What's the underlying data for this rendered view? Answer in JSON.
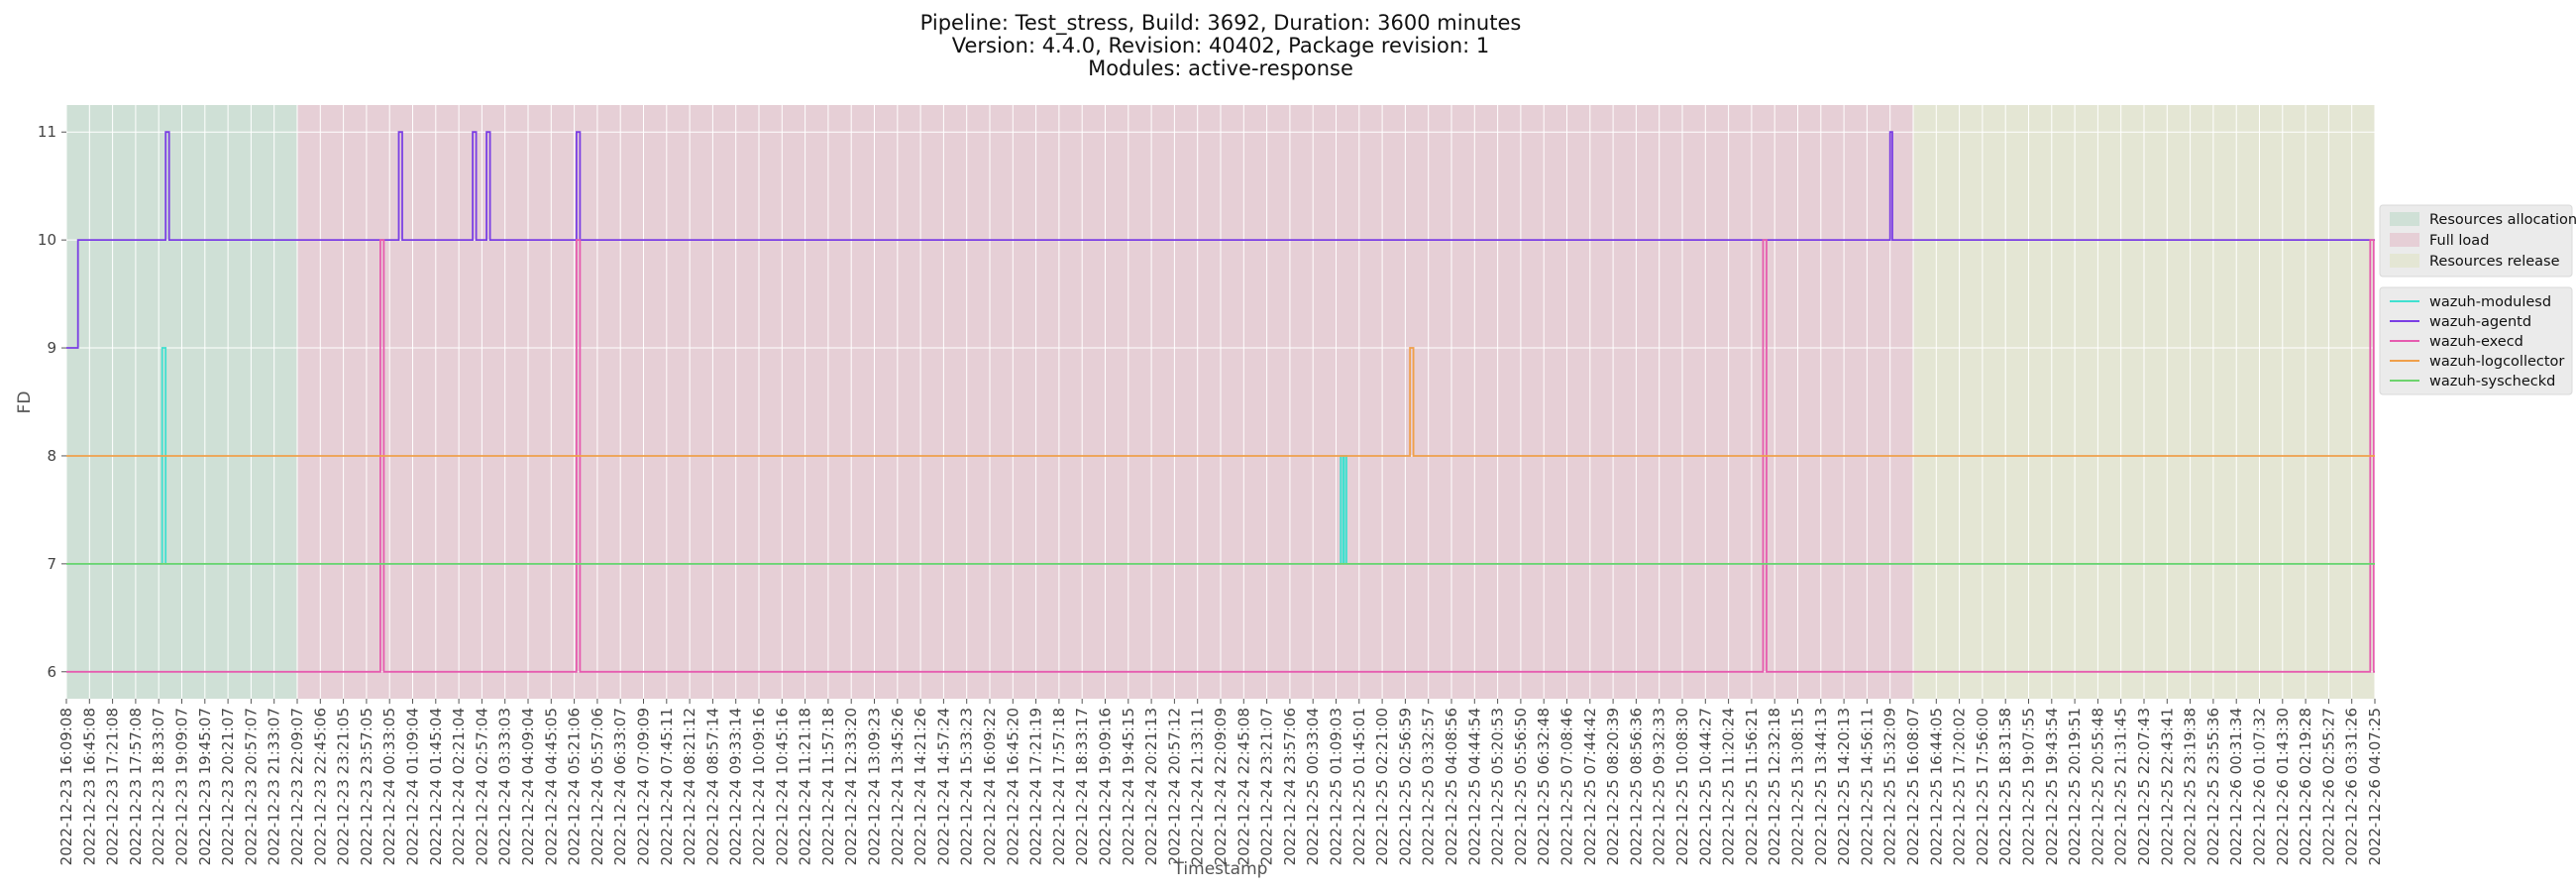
{
  "chart_data": {
    "type": "line",
    "title_lines": [
      "Pipeline: Test_stress, Build: 3692, Duration: 3600 minutes",
      "Version: 4.4.0, Revision: 40402, Package revision: 1",
      "Modules: active-response"
    ],
    "xlabel": "Timestamp",
    "ylabel": "FD",
    "ylim": [
      5.75,
      11.25
    ],
    "yticks": [
      6,
      7,
      8,
      9,
      10,
      11
    ],
    "grid": true,
    "x_tick_labels": [
      "2022-12-23 16:09:08",
      "2022-12-23 16:45:08",
      "2022-12-23 17:21:08",
      "2022-12-23 17:57:08",
      "2022-12-23 18:33:07",
      "2022-12-23 19:09:07",
      "2022-12-23 19:45:07",
      "2022-12-23 20:21:07",
      "2022-12-23 20:57:07",
      "2022-12-23 21:33:07",
      "2022-12-23 22:09:07",
      "2022-12-23 22:45:06",
      "2022-12-23 23:21:05",
      "2022-12-23 23:57:05",
      "2022-12-24 00:33:05",
      "2022-12-24 01:09:04",
      "2022-12-24 01:45:04",
      "2022-12-24 02:21:04",
      "2022-12-24 02:57:04",
      "2022-12-24 03:33:03",
      "2022-12-24 04:09:04",
      "2022-12-24 04:45:05",
      "2022-12-24 05:21:06",
      "2022-12-24 05:57:06",
      "2022-12-24 06:33:07",
      "2022-12-24 07:09:09",
      "2022-12-24 07:45:11",
      "2022-12-24 08:21:12",
      "2022-12-24 08:57:14",
      "2022-12-24 09:33:14",
      "2022-12-24 10:09:16",
      "2022-12-24 10:45:16",
      "2022-12-24 11:21:18",
      "2022-12-24 11:57:18",
      "2022-12-24 12:33:20",
      "2022-12-24 13:09:23",
      "2022-12-24 13:45:26",
      "2022-12-24 14:21:26",
      "2022-12-24 14:57:24",
      "2022-12-24 15:33:23",
      "2022-12-24 16:09:22",
      "2022-12-24 16:45:20",
      "2022-12-24 17:21:19",
      "2022-12-24 17:57:18",
      "2022-12-24 18:33:17",
      "2022-12-24 19:09:16",
      "2022-12-24 19:45:15",
      "2022-12-24 20:21:13",
      "2022-12-24 20:57:12",
      "2022-12-24 21:33:11",
      "2022-12-24 22:09:09",
      "2022-12-24 22:45:08",
      "2022-12-24 23:21:07",
      "2022-12-24 23:57:06",
      "2022-12-25 00:33:04",
      "2022-12-25 01:09:03",
      "2022-12-25 01:45:01",
      "2022-12-25 02:21:00",
      "2022-12-25 02:56:59",
      "2022-12-25 03:32:57",
      "2022-12-25 04:08:56",
      "2022-12-25 04:44:54",
      "2022-12-25 05:20:53",
      "2022-12-25 05:56:50",
      "2022-12-25 06:32:48",
      "2022-12-25 07:08:46",
      "2022-12-25 07:44:42",
      "2022-12-25 08:20:39",
      "2022-12-25 08:56:36",
      "2022-12-25 09:32:33",
      "2022-12-25 10:08:30",
      "2022-12-25 10:44:27",
      "2022-12-25 11:20:24",
      "2022-12-25 11:56:21",
      "2022-12-25 12:32:18",
      "2022-12-25 13:08:15",
      "2022-12-25 13:44:13",
      "2022-12-25 14:20:13",
      "2022-12-25 14:56:11",
      "2022-12-25 15:32:09",
      "2022-12-25 16:08:07",
      "2022-12-25 16:44:05",
      "2022-12-25 17:20:02",
      "2022-12-25 17:56:00",
      "2022-12-25 18:31:58",
      "2022-12-25 19:07:55",
      "2022-12-25 19:43:54",
      "2022-12-25 20:19:51",
      "2022-12-25 20:55:48",
      "2022-12-25 21:31:45",
      "2022-12-25 22:07:43",
      "2022-12-25 22:43:41",
      "2022-12-25 23:19:38",
      "2022-12-25 23:55:36",
      "2022-12-26 00:31:34",
      "2022-12-26 01:07:32",
      "2022-12-26 01:43:30",
      "2022-12-26 02:19:28",
      "2022-12-26 02:55:27",
      "2022-12-26 03:31:26",
      "2022-12-26 04:07:25"
    ],
    "phases": [
      {
        "name": "Resources allocation",
        "from_tick": 0,
        "to_tick": 10,
        "color": "#cfe0d6"
      },
      {
        "name": "Full load",
        "from_tick": 10,
        "to_tick": 80,
        "color": "#e6cfd6"
      },
      {
        "name": "Resources release",
        "from_tick": 80,
        "to_tick": 100,
        "color": "#e4e6d4"
      }
    ],
    "series": [
      {
        "name": "wazuh-modulesd",
        "color": "#40e0d0",
        "base": 7,
        "events": [
          {
            "at": 4.15,
            "to": 9
          },
          {
            "at": 55.2,
            "to": 8,
            "width": 0.1
          },
          {
            "at": 55.35,
            "to": 8,
            "width": 0.1
          }
        ]
      },
      {
        "name": "wazuh-agentd",
        "color": "#7b3fe4",
        "base": 10,
        "start_segment": {
          "from": 0,
          "to": 0.5,
          "value": 9
        },
        "events": [
          {
            "at": 4.3,
            "to": 11
          },
          {
            "at": 14.4,
            "to": 11
          },
          {
            "at": 17.6,
            "to": 11
          },
          {
            "at": 18.2,
            "to": 11
          },
          {
            "at": 22.1,
            "to": 11
          },
          {
            "at": 79.0,
            "to": 11,
            "width": 0.1
          }
        ]
      },
      {
        "name": "wazuh-execd",
        "color": "#e65caf",
        "base": 6,
        "events": [
          {
            "at": 13.6,
            "to": 10
          },
          {
            "at": 22.1,
            "to": 10
          },
          {
            "at": 73.5,
            "to": 10
          },
          {
            "at": 99.8,
            "to": 10
          }
        ]
      },
      {
        "name": "wazuh-logcollector",
        "color": "#f0a04b",
        "base": 8,
        "events": [
          {
            "at": 58.2,
            "to": 9
          }
        ]
      },
      {
        "name": "wazuh-syscheckd",
        "color": "#6ed46e",
        "base": 7,
        "events": []
      }
    ],
    "legend_placement": "right"
  }
}
